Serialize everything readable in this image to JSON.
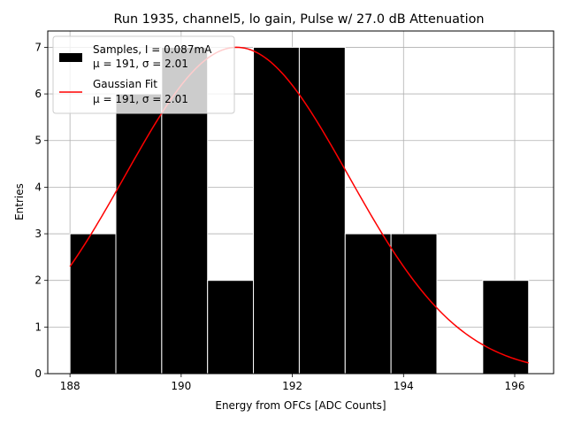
{
  "chart_data": {
    "type": "bar",
    "title": "Run 1935, channel5, lo gain, Pulse w/ 27.0 dB Attenuation",
    "xlabel": "Energy from OFCs [ADC Counts]",
    "ylabel": "Entries",
    "xlim": [
      187.6,
      196.7
    ],
    "ylim": [
      0,
      7.35
    ],
    "grid": true,
    "xticks": [
      188,
      190,
      192,
      194,
      196
    ],
    "yticks": [
      0,
      1,
      2,
      3,
      4,
      5,
      6,
      7
    ],
    "bin_edges": [
      188.0,
      188.825,
      189.65,
      190.475,
      191.3,
      192.125,
      192.95,
      193.775,
      194.6,
      195.425,
      196.25
    ],
    "values": [
      3,
      6,
      7,
      2,
      7,
      7,
      3,
      3,
      0,
      2
    ],
    "histogram": {
      "name": "Samples, I = 0.087mA",
      "stats": "μ = 191, σ = 2.01",
      "color": "#000000",
      "edge_color": "#ffffff"
    },
    "fit": {
      "name": "Gaussian Fit",
      "stats": "μ = 191, σ = 2.01",
      "color": "#ff0000",
      "mu": 191.0,
      "sigma": 2.01,
      "amplitude": 7.0,
      "x_range": [
        188.0,
        196.25
      ]
    },
    "legend_position": "upper-left"
  }
}
